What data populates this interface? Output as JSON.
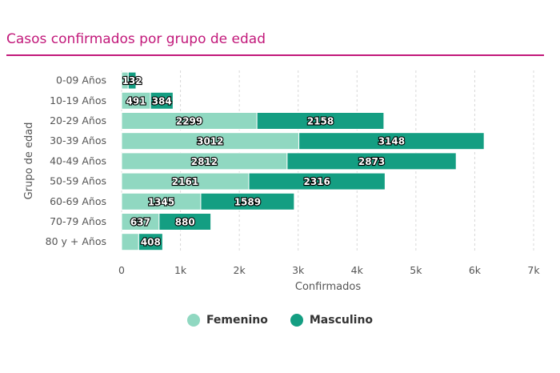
{
  "title": "Casos confirmados por grupo de edad",
  "colors": {
    "femenino": "#90d8c1",
    "masculino": "#149e82",
    "title": "#c2187a"
  },
  "chart_data": {
    "type": "bar",
    "orientation": "horizontal",
    "stacked": true,
    "categories": [
      "0-09 Años",
      "10-19 Años",
      "20-29 Años",
      "30-39 Años",
      "40-49 Años",
      "50-59 Años",
      "60-69 Años",
      "70-79 Años",
      "80 y + Años"
    ],
    "series": [
      {
        "name": "Femenino",
        "values": [
          113,
          491,
          2299,
          3012,
          2812,
          2161,
          1345,
          637,
          290
        ]
      },
      {
        "name": "Masculino",
        "values": [
          132,
          384,
          2158,
          3148,
          2873,
          2316,
          1589,
          880,
          408
        ]
      }
    ],
    "xlabel": "Confirmados",
    "ylabel": "Grupo de edad",
    "xlim": [
      0,
      7000
    ],
    "xticks": [
      {
        "value": 0,
        "label": "0"
      },
      {
        "value": 1000,
        "label": "1k"
      },
      {
        "value": 2000,
        "label": "2k"
      },
      {
        "value": 3000,
        "label": "3k"
      },
      {
        "value": 4000,
        "label": "4k"
      },
      {
        "value": 5000,
        "label": "5k"
      },
      {
        "value": 6000,
        "label": "6k"
      },
      {
        "value": 7000,
        "label": "7k"
      }
    ],
    "grid": true,
    "legend": "bottom-center"
  }
}
